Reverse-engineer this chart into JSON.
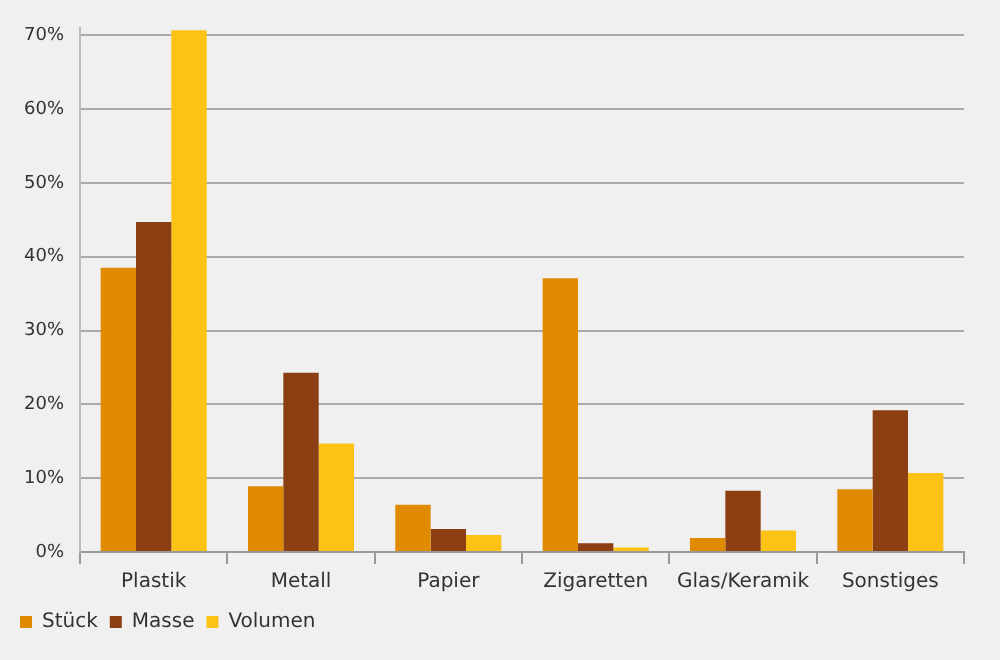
{
  "chart_data": {
    "type": "bar",
    "categories": [
      "Plastik",
      "Metall",
      "Papier",
      "Zigaretten",
      "Glas/Keramik",
      "Sonstiges"
    ],
    "series": [
      {
        "name": "Stück",
        "color": "#e08a00",
        "values": [
          38.5,
          8.9,
          6.4,
          37.1,
          1.9,
          8.5
        ]
      },
      {
        "name": "Masse",
        "color": "#8c3f12",
        "values": [
          44.7,
          24.3,
          3.1,
          1.2,
          8.3,
          19.2
        ]
      },
      {
        "name": "Volumen",
        "color": "#fcc316",
        "values": [
          70.7,
          14.7,
          2.3,
          0.6,
          2.9,
          10.7
        ]
      }
    ],
    "ylim": [
      0,
      71
    ],
    "yticks": [
      {
        "value": 0,
        "label": "0%"
      },
      {
        "value": 10,
        "label": "10%"
      },
      {
        "value": 20,
        "label": "20%"
      },
      {
        "value": 30,
        "label": "30%"
      },
      {
        "value": 40,
        "label": "40%"
      },
      {
        "value": 50,
        "label": "50%"
      },
      {
        "value": 60,
        "label": "60%"
      },
      {
        "value": 70,
        "label": "70%"
      }
    ],
    "grid": "y",
    "legend": "bottom left"
  }
}
